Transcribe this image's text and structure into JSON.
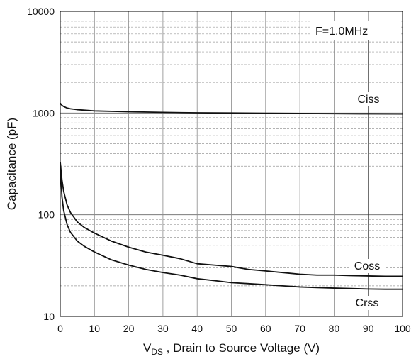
{
  "chart_data": {
    "type": "line",
    "xlabel_main": "V",
    "xlabel_sub": "DS",
    "xlabel_rest": " , Drain to Source Voltage (V)",
    "ylabel": "Capacitance (pF)",
    "xlim": [
      0,
      100
    ],
    "ylim": [
      10,
      10000
    ],
    "yscale": "log",
    "grid": true,
    "x_ticks": [
      0,
      10,
      20,
      30,
      40,
      50,
      60,
      70,
      80,
      90,
      100
    ],
    "y_ticks": [
      10,
      100,
      1000,
      10000
    ],
    "y_tick_labels": [
      "10",
      "100",
      "1000",
      "10000"
    ],
    "annotation": "F=1.0MHz",
    "series": [
      {
        "name": "Ciss",
        "x": [
          0,
          0.5,
          1,
          2,
          3,
          5,
          10,
          20,
          30,
          40,
          50,
          60,
          70,
          80,
          90,
          100
        ],
        "y": [
          1250,
          1190,
          1160,
          1120,
          1100,
          1080,
          1050,
          1030,
          1015,
          1005,
          1000,
          995,
          990,
          985,
          982,
          980
        ]
      },
      {
        "name": "Coss",
        "x": [
          0,
          0.5,
          1,
          2,
          3,
          5,
          7,
          10,
          15,
          20,
          25,
          30,
          35,
          40,
          45,
          50,
          55,
          60,
          65,
          70,
          75,
          80,
          85,
          90,
          95,
          100
        ],
        "y": [
          330,
          220,
          170,
          125,
          105,
          85,
          75,
          66,
          55,
          48,
          43,
          40,
          37,
          33,
          32,
          31,
          29,
          28,
          27,
          26,
          25.5,
          25.5,
          25.2,
          25,
          24.8,
          24.8
        ]
      },
      {
        "name": "Crss",
        "x": [
          0,
          0.5,
          1,
          2,
          3,
          5,
          7,
          10,
          15,
          20,
          25,
          30,
          35,
          40,
          45,
          50,
          55,
          60,
          65,
          70,
          75,
          80,
          85,
          90,
          95,
          100
        ],
        "y": [
          300,
          150,
          110,
          80,
          67,
          55,
          49,
          43,
          36,
          32,
          29,
          27,
          25.5,
          23.5,
          22.5,
          21.5,
          21,
          20.5,
          20,
          19.5,
          19.2,
          19,
          18.8,
          18.6,
          18.5,
          18.5
        ]
      }
    ]
  }
}
